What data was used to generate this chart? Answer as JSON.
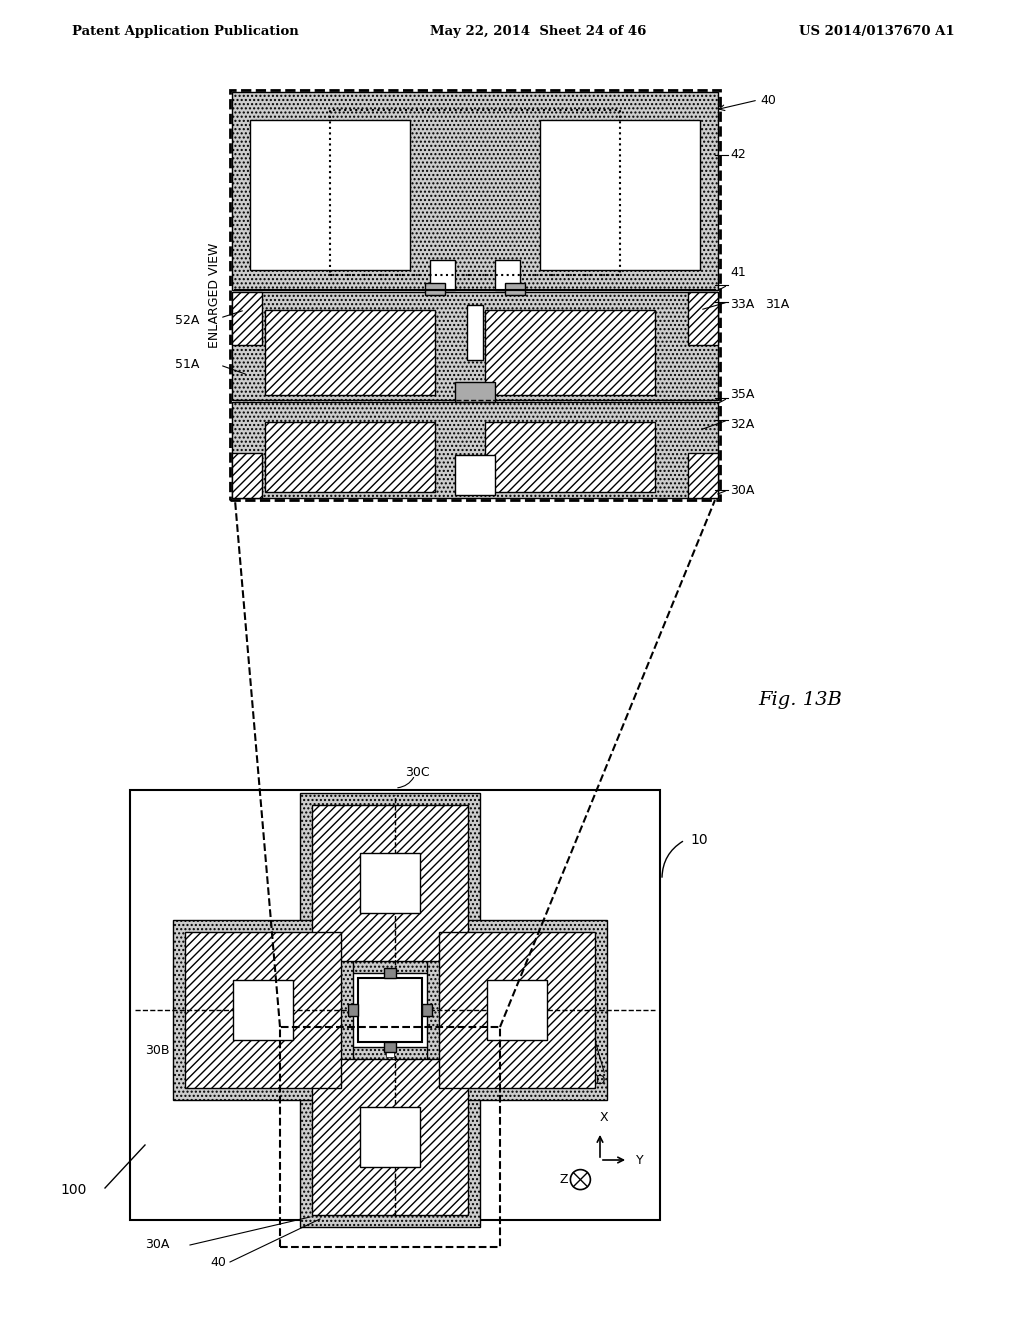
{
  "bg_color": "#ffffff",
  "header_left": "Patent Application Publication",
  "header_mid": "May 22, 2014  Sheet 24 of 46",
  "header_right": "US 2014/0137670 A1",
  "fig_label": "Fig. 13B",
  "dot_gray": "#c8c8c8",
  "hatch_gray": "#b0b0b0",
  "line_color": "#000000",
  "white": "#ffffff"
}
